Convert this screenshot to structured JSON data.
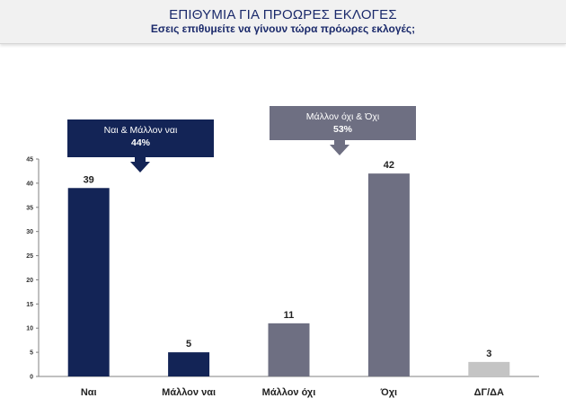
{
  "header": {
    "title": "ΕΠΙΘΥΜΙΑ ΓΙΑ ΠΡΟΩΡΕΣ ΕΚΛΟΓΕΣ",
    "subtitle": "Εσεις επιθυμείτε να γίνουν τώρα πρόωρες εκλογές;"
  },
  "chart_data": {
    "type": "bar",
    "categories": [
      "Ναι",
      "Μάλλον ναι",
      "Μάλλον όχι",
      "Όχι",
      "ΔΓ/ΔΑ"
    ],
    "values": [
      39,
      5,
      11,
      42,
      3
    ],
    "colors": [
      "#132456",
      "#132456",
      "#6e6f82",
      "#6e6f82",
      "#c4c4c4"
    ],
    "ylim": [
      0,
      45
    ],
    "yticks": [
      0,
      5,
      10,
      15,
      20,
      25,
      30,
      35,
      40,
      45
    ],
    "grid": false,
    "callouts": [
      {
        "label": "Ναι & Μάλλον ναι",
        "value": "44%",
        "color": "#132456"
      },
      {
        "label": "Μάλλον όχι & Όχι",
        "value": "53%",
        "color": "#6e6f82"
      }
    ]
  }
}
